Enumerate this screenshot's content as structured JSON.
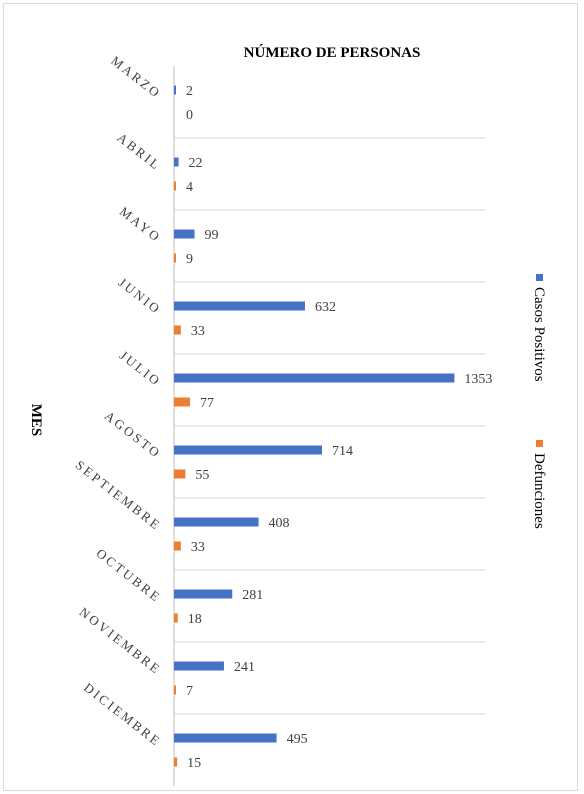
{
  "chart_data": {
    "type": "bar",
    "orientation": "horizontal",
    "title": "NÚMERO DE PERSONAS",
    "ylabel": "MES",
    "xlabel": "",
    "categories": [
      "MARZO",
      "ABRIL",
      "MAYO",
      "JUNIO",
      "JULIO",
      "AGOSTO",
      "SEPTIEMBRE",
      "OCTUBRE",
      "NOVIEMBRE",
      "DICIEMBRE"
    ],
    "series": [
      {
        "name": "Casos Positivos",
        "color": "#4472c4",
        "values": [
          2,
          22,
          99,
          632,
          1353,
          714,
          408,
          281,
          241,
          495
        ]
      },
      {
        "name": "Defunciones",
        "color": "#ed7d31",
        "values": [
          0,
          4,
          9,
          33,
          77,
          55,
          33,
          18,
          7,
          15
        ]
      }
    ],
    "xlim": [
      0,
      1400
    ],
    "grid": true,
    "data_labels": true,
    "legend": "right"
  }
}
